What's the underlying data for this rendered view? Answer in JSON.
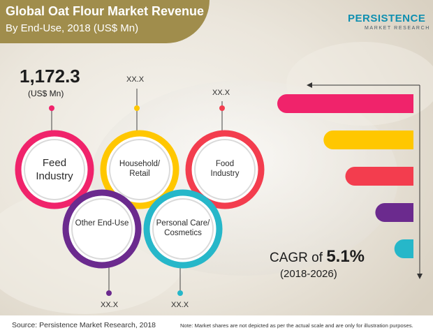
{
  "title": "Global Oat Flour Market Revenue",
  "subtitle": "By End-Use, 2018 (US$ Mn)",
  "logo": {
    "main": "PERSISTENCE",
    "sub": "MARKET RESEARCH"
  },
  "total": {
    "value": "1,172.3",
    "unit": "(US$ Mn)"
  },
  "cagr": {
    "prefix": "CAGR of ",
    "value": "5.1%",
    "period": "(2018-2026)"
  },
  "source": "Source: Persistence Market Research, 2018",
  "note": "Note: Market shares are not depicted as per the actual scale and are only for illustration purposes.",
  "colors": {
    "title_band": "#a08d4c",
    "pink": "#f0236b",
    "yellow": "#ffc700",
    "red": "#f33d4e",
    "purple": "#6b2a8e",
    "teal": "#26b7c9"
  },
  "chart_data": {
    "type": "bar",
    "title": "Global Oat Flour Market Revenue",
    "subtitle": "By End-Use, 2018 (US$ Mn)",
    "total": "1,172.3",
    "categories": [
      "Feed Industry",
      "Household/ Retail",
      "Food Industry",
      "Other End-Use",
      "Personal Care/ Cosmetics"
    ],
    "labels": [
      "",
      "XX.X",
      "XX.X",
      "XX.X",
      "XX.X"
    ],
    "bar_order": [
      "Feed Industry",
      "Household/ Retail",
      "Food Industry",
      "Other End-Use",
      "Personal Care/ Cosmetics"
    ],
    "bar_values": [
      1,
      0.66,
      0.5,
      0.28,
      0.14
    ],
    "series_colors": [
      "#f0236b",
      "#ffc700",
      "#f33d4e",
      "#6b2a8e",
      "#26b7c9"
    ]
  }
}
